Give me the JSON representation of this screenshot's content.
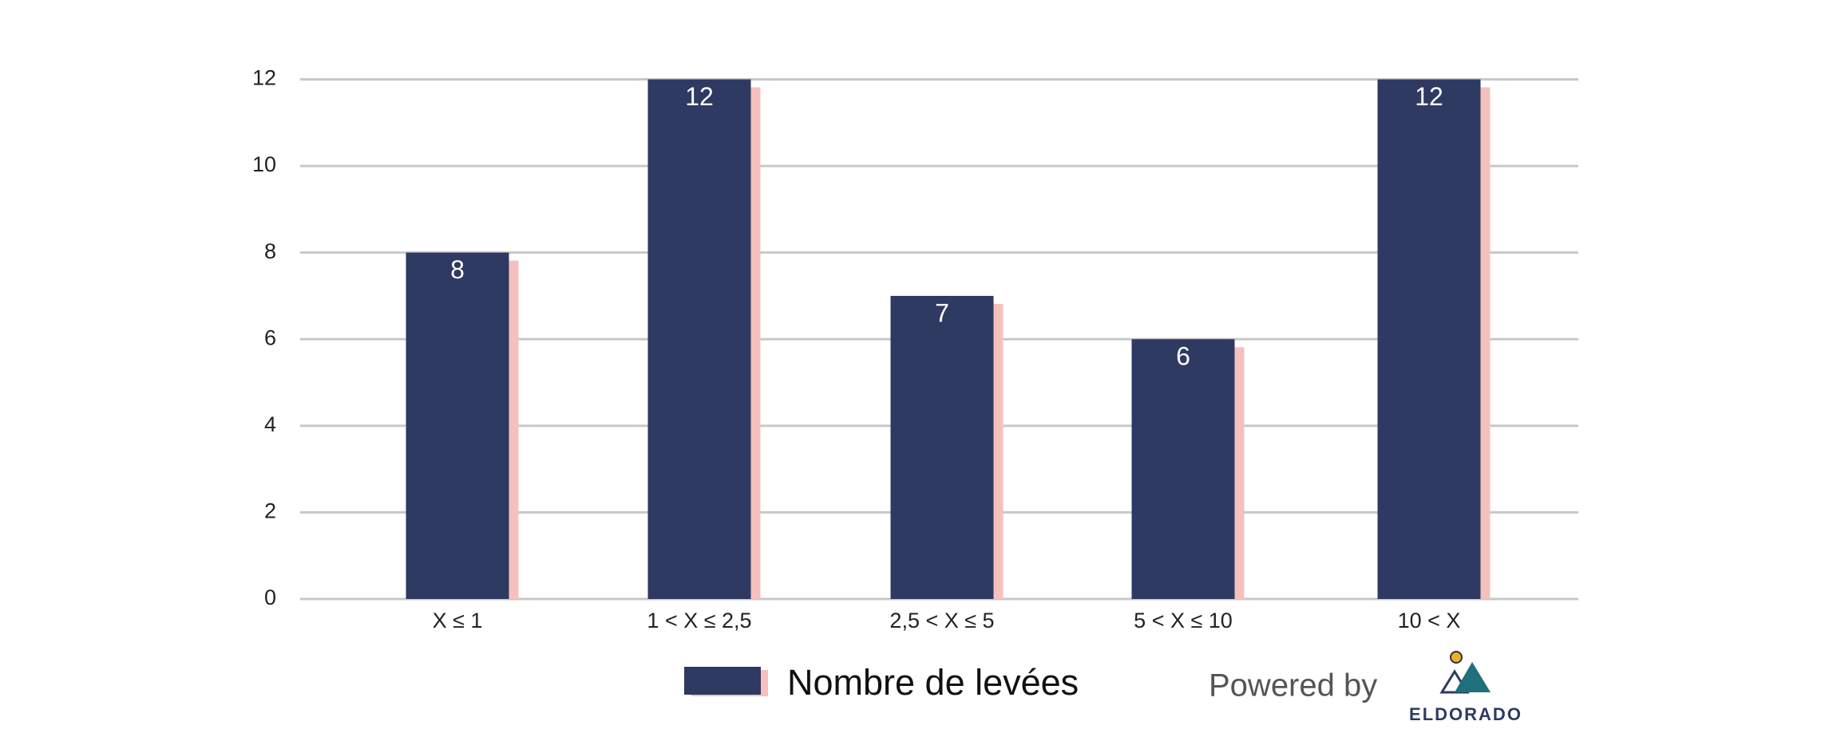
{
  "chart_data": {
    "type": "bar",
    "categories": [
      "X ≤ 1",
      "1 < X ≤ 2,5",
      "2,5 < X ≤ 5",
      "5 < X ≤ 10",
      "10 < X"
    ],
    "series": [
      {
        "name": "Nombre de levées",
        "color": "#2e3a62",
        "values": [
          8,
          12,
          7,
          6,
          12
        ]
      }
    ],
    "shadow_color": "#f6c1bd",
    "ylim": [
      0,
      12
    ],
    "yticks": [
      0,
      2,
      4,
      6,
      8,
      10,
      12
    ],
    "grid": true,
    "data_labels": true,
    "legend": "bottom",
    "branding": {
      "powered_by": "Powered by",
      "logo_text": "ELDORADO"
    }
  }
}
